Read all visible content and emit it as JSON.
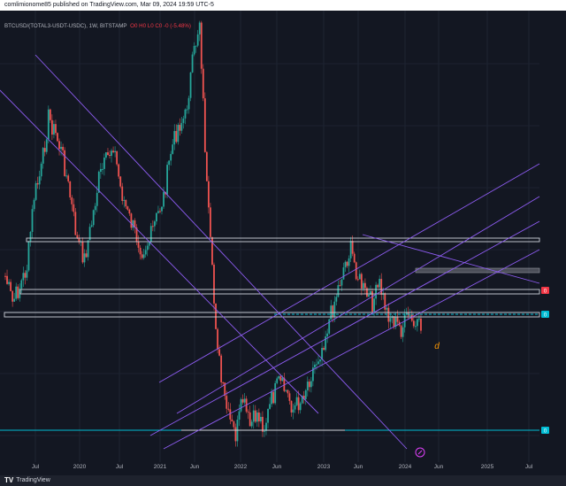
{
  "header": {
    "publisher_line": "comlimionome85 published on TradingView.com, Mar 09, 2024 19:59 UTC-5"
  },
  "symbol_info": {
    "text": "BTCUSD/(TOTAL3-USDT-USDC), 1W, BITSTAMP",
    "ohlc": "O0 H0 L0 C0 -0 (-5.48%)"
  },
  "footer": {
    "brand": "TradingView",
    "logo_text": "TV"
  },
  "colors": {
    "background": "#131722",
    "up": "#26a69a",
    "down": "#ef5350",
    "channel": "#8e5cf2",
    "level_box": "#d1d4dc",
    "cyan": "#00bcd4",
    "red_tag": "#f23645"
  },
  "chart_data": {
    "type": "candlestick",
    "title": "",
    "x_tick_labels": [
      "Jul",
      "2020",
      "Jul",
      "2021",
      "Jun",
      "2022",
      "Jun",
      "2023",
      "Jun",
      "2024",
      "Jun",
      "2025",
      "Jul"
    ],
    "price_tags": [
      "0",
      "0",
      "0"
    ],
    "annotation_glyph": "d",
    "series_close_path": [
      300,
      330,
      312,
      290,
      210,
      180,
      120,
      140,
      165,
      210,
      260,
      280,
      240,
      190,
      170,
      150,
      200,
      230,
      250,
      270,
      260,
      235,
      210,
      160,
      130,
      120,
      60,
      10,
      200,
      330,
      420,
      460,
      480,
      440,
      470,
      455,
      470,
      440,
      420,
      430,
      450,
      440,
      420,
      400,
      380,
      350,
      320,
      290,
      270,
      300,
      320,
      330,
      310,
      340,
      350,
      360,
      345,
      360,
      355
    ]
  }
}
